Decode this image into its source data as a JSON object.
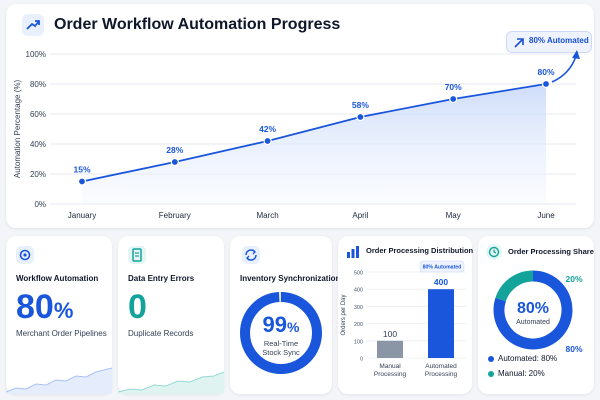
{
  "header": {
    "title": "Order Workflow Automation Progress",
    "badge": "80% Automated"
  },
  "chart_data": [
    {
      "type": "line",
      "categories": [
        "January",
        "February",
        "March",
        "April",
        "May",
        "June"
      ],
      "values": [
        15,
        28,
        42,
        58,
        70,
        80
      ],
      "value_labels": [
        "15%",
        "28%",
        "42%",
        "58%",
        "70%",
        "80%"
      ],
      "ylabel": "Automation Percentage (%)",
      "ylim": [
        0,
        100
      ],
      "yticks": [
        "0%",
        "20%",
        "40%",
        "60%",
        "80%",
        "100%"
      ],
      "grid": true
    },
    {
      "type": "bar",
      "title": "Order Processing Distribution",
      "categories": [
        "Manual Processing",
        "Automated Processing"
      ],
      "values": [
        100,
        400
      ],
      "ylabel": "Orders per Day",
      "ylim": [
        0,
        500
      ],
      "yticks": [
        "0",
        "100",
        "200",
        "300",
        "400",
        "500"
      ],
      "annotation": "80% Automated"
    },
    {
      "type": "pie",
      "title": "Order Processing Share",
      "categories": [
        "Automated",
        "Manual"
      ],
      "values": [
        80,
        20
      ],
      "center_value": "80%",
      "center_label": "Automated",
      "slice_labels": [
        "80%",
        "20%"
      ],
      "legend": [
        "Automated: 80%",
        "Manual: 20%"
      ]
    }
  ],
  "cards": {
    "workflow": {
      "title": "Workflow Automation",
      "value": "80",
      "unit": "%",
      "subtitle": "Merchant Order Pipelines"
    },
    "errors": {
      "title": "Data Entry Errors",
      "value": "0",
      "subtitle": "Duplicate Records"
    },
    "inventory": {
      "title": "Inventory Synchronization",
      "value": "99",
      "unit": "%",
      "label_line1": "Real-Time",
      "label_line2": "Stock Sync",
      "percent": 99
    }
  },
  "colors": {
    "primary": "#1a56db",
    "teal": "#14a39a",
    "gray_bar": "#8a95a5",
    "ring_track": "#dbe6fb"
  }
}
